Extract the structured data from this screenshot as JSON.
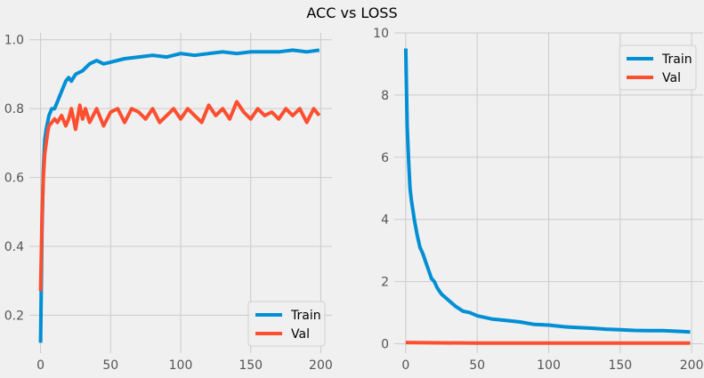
{
  "figure": {
    "title": "ACC vs LOSS"
  },
  "colors": {
    "background": "#f0f0f0",
    "grid": "#cbcbcb",
    "train": "#008fd5",
    "val": "#fc4f30",
    "tick_text": "#555555"
  },
  "chart_data": [
    {
      "type": "line",
      "title": "",
      "xlabel": "",
      "ylabel": "",
      "xlim": [
        -8,
        208
      ],
      "ylim": [
        0.09,
        1.02
      ],
      "xticks": [
        "0",
        "50",
        "100",
        "150",
        "200"
      ],
      "yticks": [
        "0.2",
        "0.4",
        "0.6",
        "0.8",
        "1.0"
      ],
      "grid": true,
      "legend": {
        "position": "bottom-right",
        "entries": [
          "Train",
          "Val"
        ]
      },
      "series": [
        {
          "name": "Train",
          "color": "#008fd5",
          "x": [
            0,
            1,
            2,
            3,
            4,
            5,
            6,
            8,
            10,
            12,
            15,
            18,
            20,
            22,
            25,
            30,
            35,
            40,
            45,
            50,
            60,
            70,
            80,
            90,
            100,
            110,
            120,
            130,
            140,
            150,
            160,
            170,
            180,
            190,
            199
          ],
          "y": [
            0.12,
            0.45,
            0.62,
            0.71,
            0.74,
            0.76,
            0.78,
            0.8,
            0.8,
            0.82,
            0.85,
            0.88,
            0.89,
            0.88,
            0.9,
            0.91,
            0.93,
            0.94,
            0.93,
            0.935,
            0.945,
            0.95,
            0.955,
            0.95,
            0.96,
            0.955,
            0.96,
            0.965,
            0.96,
            0.965,
            0.965,
            0.965,
            0.97,
            0.965,
            0.97
          ]
        },
        {
          "name": "Val",
          "color": "#fc4f30",
          "x": [
            0,
            1,
            2,
            3,
            4,
            5,
            6,
            8,
            10,
            12,
            15,
            18,
            20,
            22,
            25,
            28,
            30,
            32,
            35,
            40,
            45,
            50,
            55,
            60,
            65,
            70,
            75,
            80,
            85,
            90,
            95,
            100,
            105,
            110,
            115,
            120,
            125,
            130,
            135,
            140,
            145,
            150,
            155,
            160,
            165,
            170,
            175,
            180,
            185,
            190,
            195,
            199
          ],
          "y": [
            0.27,
            0.48,
            0.6,
            0.67,
            0.7,
            0.73,
            0.75,
            0.76,
            0.77,
            0.76,
            0.78,
            0.75,
            0.77,
            0.8,
            0.74,
            0.81,
            0.77,
            0.8,
            0.76,
            0.8,
            0.75,
            0.79,
            0.8,
            0.76,
            0.8,
            0.79,
            0.77,
            0.8,
            0.76,
            0.78,
            0.8,
            0.77,
            0.8,
            0.78,
            0.76,
            0.81,
            0.78,
            0.8,
            0.77,
            0.82,
            0.79,
            0.77,
            0.8,
            0.78,
            0.79,
            0.77,
            0.8,
            0.78,
            0.8,
            0.76,
            0.8,
            0.78
          ]
        }
      ]
    },
    {
      "type": "line",
      "title": "",
      "xlabel": "",
      "ylabel": "",
      "xlim": [
        -8,
        208
      ],
      "ylim": [
        -0.3,
        10
      ],
      "xticks": [
        "0",
        "50",
        "100",
        "150",
        "200"
      ],
      "yticks": [
        "0",
        "2",
        "4",
        "6",
        "8",
        "10"
      ],
      "grid": true,
      "legend": {
        "position": "top-right",
        "entries": [
          "Train",
          "Val"
        ]
      },
      "series": [
        {
          "name": "Train",
          "color": "#008fd5",
          "x": [
            0,
            1,
            2,
            3,
            4,
            5,
            6,
            8,
            10,
            12,
            15,
            18,
            20,
            22,
            25,
            30,
            35,
            40,
            45,
            50,
            60,
            70,
            80,
            90,
            100,
            110,
            120,
            130,
            140,
            150,
            160,
            170,
            180,
            190,
            199
          ],
          "y": [
            9.5,
            7.0,
            5.9,
            5.0,
            4.6,
            4.3,
            4.0,
            3.5,
            3.1,
            2.9,
            2.5,
            2.1,
            2.0,
            1.8,
            1.6,
            1.4,
            1.2,
            1.05,
            1.0,
            0.9,
            0.8,
            0.75,
            0.7,
            0.62,
            0.6,
            0.55,
            0.52,
            0.5,
            0.47,
            0.45,
            0.43,
            0.42,
            0.42,
            0.4,
            0.38
          ]
        },
        {
          "name": "Val",
          "color": "#fc4f30",
          "x": [
            0,
            50,
            100,
            150,
            199
          ],
          "y": [
            0.04,
            0.02,
            0.02,
            0.02,
            0.02
          ]
        }
      ]
    }
  ]
}
